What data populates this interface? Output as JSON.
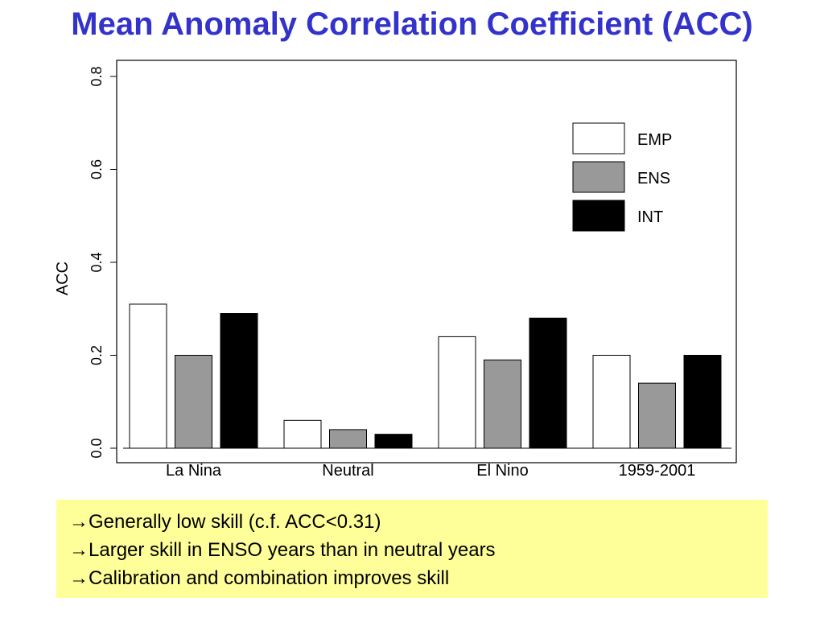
{
  "slide": {
    "title": "Mean Anomaly Correlation Coefficient (ACC)"
  },
  "notes": [
    {
      "arrow": "→",
      "text": "Generally low skill (c.f. ACC<0.31)"
    },
    {
      "arrow": "→",
      "text": "Larger skill in ENSO years than in neutral years"
    },
    {
      "arrow": "→",
      "text": "Calibration and combination improves skill"
    }
  ],
  "colors": {
    "title": "#3333cc",
    "note_background": "#ffff99",
    "EMP": "#ffffff",
    "ENS": "#999999",
    "INT": "#000000"
  },
  "chart_data": {
    "type": "bar",
    "title": "",
    "xlabel": "",
    "ylabel": "ACC",
    "ylim": [
      0,
      0.8
    ],
    "yticks": [
      "0.0",
      "0.2",
      "0.4",
      "0.6",
      "0.8"
    ],
    "categories": [
      "La Nina",
      "Neutral",
      "El Nino",
      "1959-2001"
    ],
    "series": [
      {
        "name": "EMP",
        "color": "#ffffff",
        "values": [
          0.31,
          0.06,
          0.24,
          0.2
        ]
      },
      {
        "name": "ENS",
        "color": "#999999",
        "values": [
          0.2,
          0.04,
          0.19,
          0.14
        ]
      },
      {
        "name": "INT",
        "color": "#000000",
        "values": [
          0.29,
          0.03,
          0.28,
          0.2
        ]
      }
    ],
    "legend_position": "top-right",
    "grid": false
  }
}
